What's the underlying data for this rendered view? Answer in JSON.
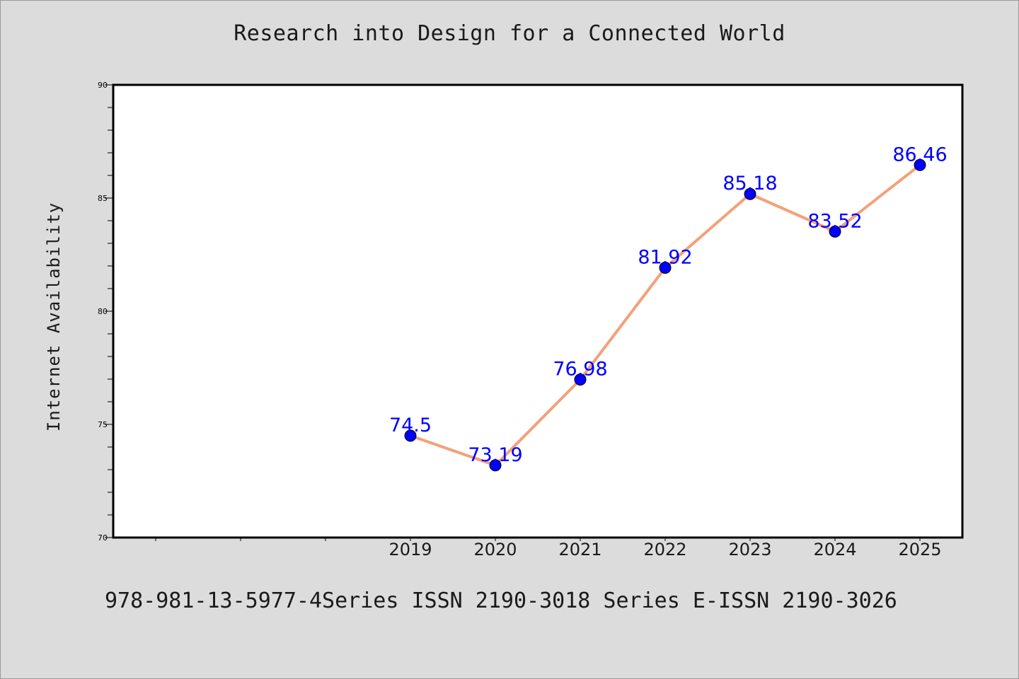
{
  "chart_data": {
    "type": "line",
    "title": "Research into Design for a Connected World",
    "ylabel": "Internet Availability",
    "xlabel": "",
    "x_ticks": [
      "2019",
      "2020",
      "2021",
      "2022",
      "2023",
      "2024",
      "2025"
    ],
    "y_ticks": [
      "70",
      "75",
      "80",
      "85",
      "90"
    ],
    "ylim": [
      70,
      90
    ],
    "x_range": [
      2015.5,
      2025.5
    ],
    "x": [
      2019,
      2020,
      2021,
      2022,
      2023,
      2024,
      2025
    ],
    "series": [
      {
        "values": [
          74.5,
          73.19,
          76.98,
          81.92,
          85.18,
          83.52,
          86.46
        ],
        "labels": [
          "74.5",
          "73.19",
          "76.98",
          "81.92",
          "85.18",
          "83.52",
          "86.46"
        ],
        "line_color": "#f4a07a",
        "marker_color": "#0000ff"
      }
    ],
    "grid": false,
    "legend": "none"
  },
  "footer": "978-981-13-5977-4Series ISSN 2190-3018 Series E-ISSN 2190-3026"
}
